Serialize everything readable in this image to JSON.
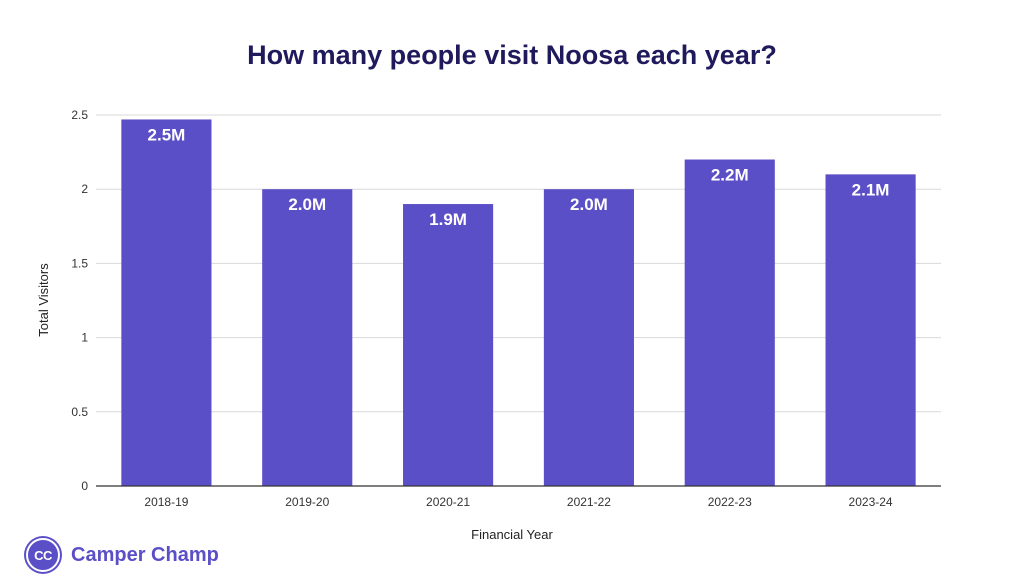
{
  "colors": {
    "bar": "#5b4fc7",
    "title": "#1f1a5c",
    "brand": "#5b4fc7",
    "grid": "#d9d9d9",
    "axis": "#333333"
  },
  "chart_data": {
    "type": "bar",
    "title": "How many people visit Noosa each year?",
    "xlabel": "Financial Year",
    "ylabel": "Total Visitors",
    "categories": [
      "2018-19",
      "2019-20",
      "2020-21",
      "2021-22",
      "2022-23",
      "2023-24"
    ],
    "values": [
      2.47,
      2.0,
      1.9,
      2.0,
      2.2,
      2.1
    ],
    "data_labels": [
      "2.5M",
      "2.0M",
      "1.9M",
      "2.0M",
      "2.2M",
      "2.1M"
    ],
    "ylim": [
      0,
      2.5
    ],
    "yticks": [
      0,
      0.5,
      1,
      1.5,
      2,
      2.5
    ],
    "ytick_labels": [
      "0",
      "0.5",
      "1",
      "1.5",
      "2",
      "2.5"
    ],
    "grid": true,
    "legend": "none"
  },
  "brand": {
    "logo_text": "CC",
    "name": "Camper Champ",
    "logo_icon": "camper-champ-logo-icon"
  }
}
